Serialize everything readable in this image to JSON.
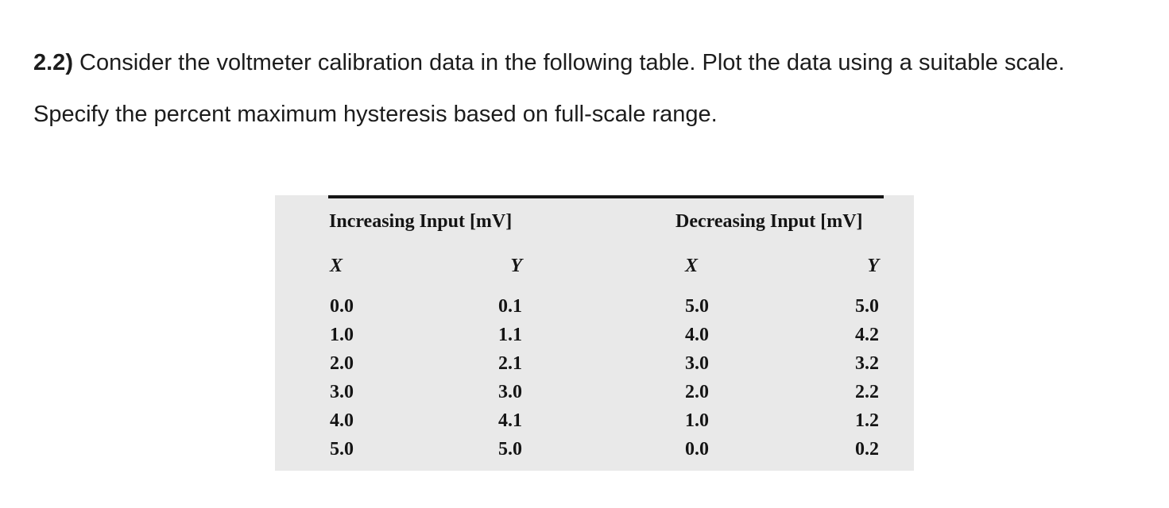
{
  "problem": {
    "number": "2.2)",
    "line1_rest": " Consider the voltmeter calibration data in the following table. Plot the data using a suitable scale.",
    "line2": "Specify the percent maximum hysteresis based on full-scale range."
  },
  "table": {
    "group_headers": {
      "increasing": "Increasing Input [mV]",
      "decreasing": "Decreasing Input [mV]"
    },
    "col_headers": [
      "X",
      "Y",
      "X",
      "Y"
    ],
    "rows": [
      [
        "0.0",
        "0.1",
        "5.0",
        "5.0"
      ],
      [
        "1.0",
        "1.1",
        "4.0",
        "4.2"
      ],
      [
        "2.0",
        "2.1",
        "3.0",
        "3.2"
      ],
      [
        "3.0",
        "3.0",
        "2.0",
        "2.2"
      ],
      [
        "4.0",
        "4.1",
        "1.0",
        "1.2"
      ],
      [
        "5.0",
        "5.0",
        "0.0",
        "0.2"
      ]
    ]
  },
  "colors": {
    "panel_background": "#e9e9e9",
    "text": "#1c1c1c",
    "table_rule": "#151515",
    "page_background": "#ffffff"
  }
}
